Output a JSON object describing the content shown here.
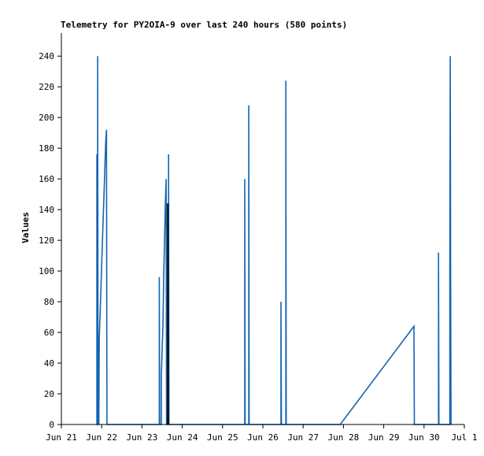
{
  "chart_data": {
    "type": "line",
    "title": "Telemetry for PY2OIA-9 over last 240 hours (580 points)",
    "xlabel": "",
    "ylabel": "Values",
    "x_ticks": [
      "Jun 21",
      "Jun 22",
      "Jun 23",
      "Jun 24",
      "Jun 25",
      "Jun 26",
      "Jun 27",
      "Jun 28",
      "Jun 29",
      "Jun 30",
      "Jul 1"
    ],
    "xlim": [
      0,
      10
    ],
    "ylim": [
      0,
      255
    ],
    "y_ticks": [
      0,
      20,
      40,
      60,
      80,
      100,
      120,
      140,
      160,
      180,
      200,
      220,
      240
    ],
    "grid": false,
    "colors": {
      "series": "#1464b4",
      "dark_series": "#000000",
      "axis": "#000000"
    },
    "series": [
      {
        "values": [
          [
            0.88,
            0
          ],
          [
            0.88,
            176
          ],
          [
            0.88,
            0
          ],
          [
            0.9,
            0
          ],
          [
            0.9,
            240
          ],
          [
            0.91,
            0
          ],
          [
            0.92,
            40
          ],
          [
            0.93,
            0
          ],
          [
            0.94,
            56
          ],
          [
            0.96,
            72
          ],
          [
            0.98,
            88
          ],
          [
            1.0,
            104
          ],
          [
            1.02,
            120
          ],
          [
            1.04,
            136
          ],
          [
            1.06,
            152
          ],
          [
            1.08,
            168
          ],
          [
            1.1,
            184
          ],
          [
            1.12,
            192
          ],
          [
            1.13,
            0
          ],
          [
            2.43,
            0
          ],
          [
            2.43,
            96
          ],
          [
            2.44,
            0
          ],
          [
            2.48,
            0
          ],
          [
            2.48,
            32
          ],
          [
            2.5,
            48
          ],
          [
            2.52,
            64
          ],
          [
            2.54,
            96
          ],
          [
            2.56,
            120
          ],
          [
            2.58,
            144
          ],
          [
            2.6,
            160
          ],
          [
            2.61,
            0
          ],
          [
            2.66,
            0
          ],
          [
            2.66,
            176
          ],
          [
            2.67,
            0
          ],
          [
            4.55,
            0
          ],
          [
            4.55,
            160
          ],
          [
            4.56,
            0
          ],
          [
            4.65,
            0
          ],
          [
            4.65,
            208
          ],
          [
            4.66,
            0
          ],
          [
            5.45,
            0
          ],
          [
            5.45,
            80
          ],
          [
            5.46,
            0
          ],
          [
            5.57,
            0
          ],
          [
            5.57,
            224
          ],
          [
            5.58,
            0
          ],
          [
            6.92,
            0
          ],
          [
            8.75,
            64
          ],
          [
            8.76,
            0
          ],
          [
            9.36,
            0
          ],
          [
            9.36,
            112
          ],
          [
            9.37,
            0
          ],
          [
            9.64,
            0
          ],
          [
            9.64,
            104
          ],
          [
            9.65,
            240
          ],
          [
            9.66,
            96
          ],
          [
            9.67,
            0
          ]
        ]
      },
      {
        "values": [
          [
            2.64,
            0
          ],
          [
            2.64,
            144
          ],
          [
            2.65,
            0
          ]
        ]
      }
    ]
  }
}
